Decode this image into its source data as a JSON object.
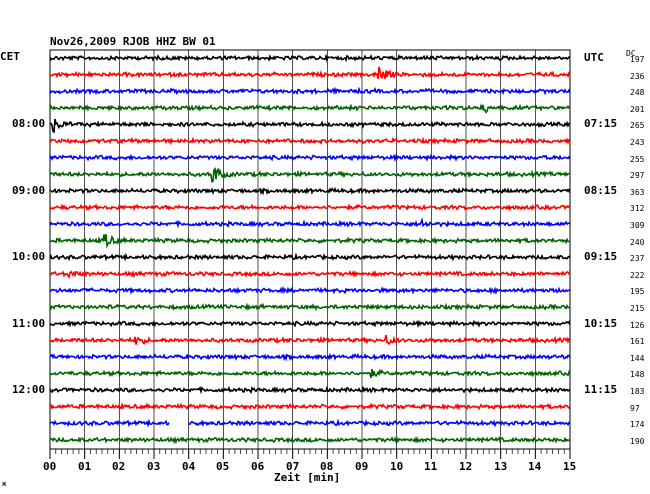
{
  "chart_data": {
    "type": "line",
    "title": "Nov26,2009  RJOB HHZ BW 01",
    "left_axis_label": "CET",
    "right_axis_label": "UTC",
    "dc_header": "DC",
    "xlabel": "Zeit [min]",
    "x_ticks": [
      "00",
      "01",
      "02",
      "03",
      "04",
      "05",
      "06",
      "07",
      "08",
      "09",
      "10",
      "11",
      "12",
      "13",
      "14",
      "15"
    ],
    "xlim": [
      0,
      15
    ],
    "grid": true,
    "trace_colors": [
      "#000000",
      "#ff0000",
      "#0000ff",
      "#006400"
    ],
    "left_time_labels": [
      {
        "trace": 4,
        "text": "08:00"
      },
      {
        "trace": 8,
        "text": "09:00"
      },
      {
        "trace": 12,
        "text": "10:00"
      },
      {
        "trace": 16,
        "text": "11:00"
      },
      {
        "trace": 20,
        "text": "12:00"
      }
    ],
    "right_time_labels": [
      {
        "trace": 0,
        "text": "UTC"
      },
      {
        "trace": 4,
        "text": "07:15"
      },
      {
        "trace": 8,
        "text": "08:15"
      },
      {
        "trace": 12,
        "text": "09:15"
      },
      {
        "trace": 16,
        "text": "10:15"
      },
      {
        "trace": 20,
        "text": "11:15"
      }
    ],
    "dc_offsets": [
      197,
      236,
      248,
      201,
      265,
      243,
      255,
      297,
      363,
      312,
      309,
      240,
      237,
      222,
      195,
      215,
      126,
      161,
      144,
      148,
      183,
      97,
      174,
      190
    ],
    "events": [
      {
        "trace": 1,
        "minute": 9.5,
        "amplitude": 9
      },
      {
        "trace": 3,
        "minute": 12.5,
        "amplitude": 5
      },
      {
        "trace": 4,
        "minute": 0.1,
        "amplitude": 7
      },
      {
        "trace": 7,
        "minute": 4.7,
        "amplitude": 10
      },
      {
        "trace": 10,
        "minute": 10.7,
        "amplitude": 4
      },
      {
        "trace": 11,
        "minute": 1.6,
        "amplitude": 6
      },
      {
        "trace": 13,
        "minute": 0.5,
        "amplitude": 4
      },
      {
        "trace": 17,
        "minute": 2.5,
        "amplitude": 4
      },
      {
        "trace": 17,
        "minute": 9.7,
        "amplitude": 4
      },
      {
        "trace": 19,
        "minute": 9.3,
        "amplitude": 3
      }
    ],
    "data_gap": {
      "trace": 22,
      "start_minute": 3.45,
      "end_minute": 4.0
    }
  }
}
